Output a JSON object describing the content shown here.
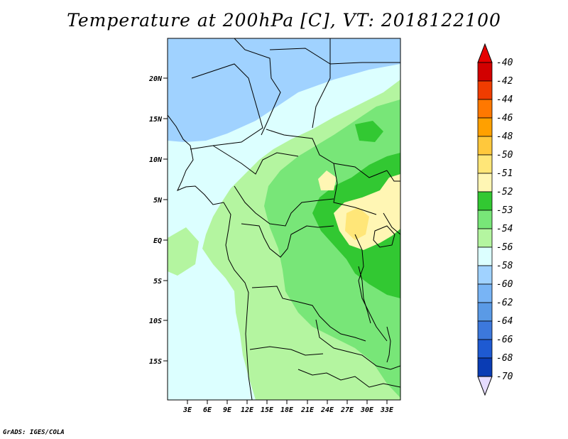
{
  "title": "Temperature at 200hPa [C], VT: 2018122100",
  "credit": "GrADS: IGES/COLA",
  "map": {
    "lat_labels": [
      "20N",
      "15N",
      "10N",
      "5N",
      "EQ",
      "5S",
      "10S",
      "15S"
    ],
    "lon_labels": [
      "3E",
      "6E",
      "9E",
      "12E",
      "15E",
      "18E",
      "21E",
      "24E",
      "27E",
      "30E",
      "33E"
    ]
  },
  "colorbar": {
    "labels": [
      "-40",
      "-42",
      "-44",
      "-46",
      "-48",
      "-50",
      "-51",
      "-52",
      "-53",
      "-54",
      "-56",
      "-58",
      "-60",
      "-62",
      "-64",
      "-66",
      "-68",
      "-70"
    ],
    "colors": [
      "#d20000",
      "#f03c00",
      "#ff7800",
      "#ffa000",
      "#ffc83c",
      "#ffe678",
      "#fff6b4",
      "#32c832",
      "#78e678",
      "#b4f5a0",
      "#dcffff",
      "#a0d2ff",
      "#78b4f5",
      "#5a9ae6",
      "#3c78dc",
      "#1e5ad2",
      "#0a3cb4",
      "#000a6e"
    ],
    "top_arrow_color": "#e60000",
    "bottom_arrow_color": "#e6dcff"
  },
  "field_colors": {
    "t_56": "#a0d2ff",
    "t_54": "#dcffff",
    "t_53": "#b4f5a0",
    "t_52": "#78e678",
    "t_51": "#32c832",
    "t_50": "#fff6b4",
    "t_48": "#ffe678"
  }
}
